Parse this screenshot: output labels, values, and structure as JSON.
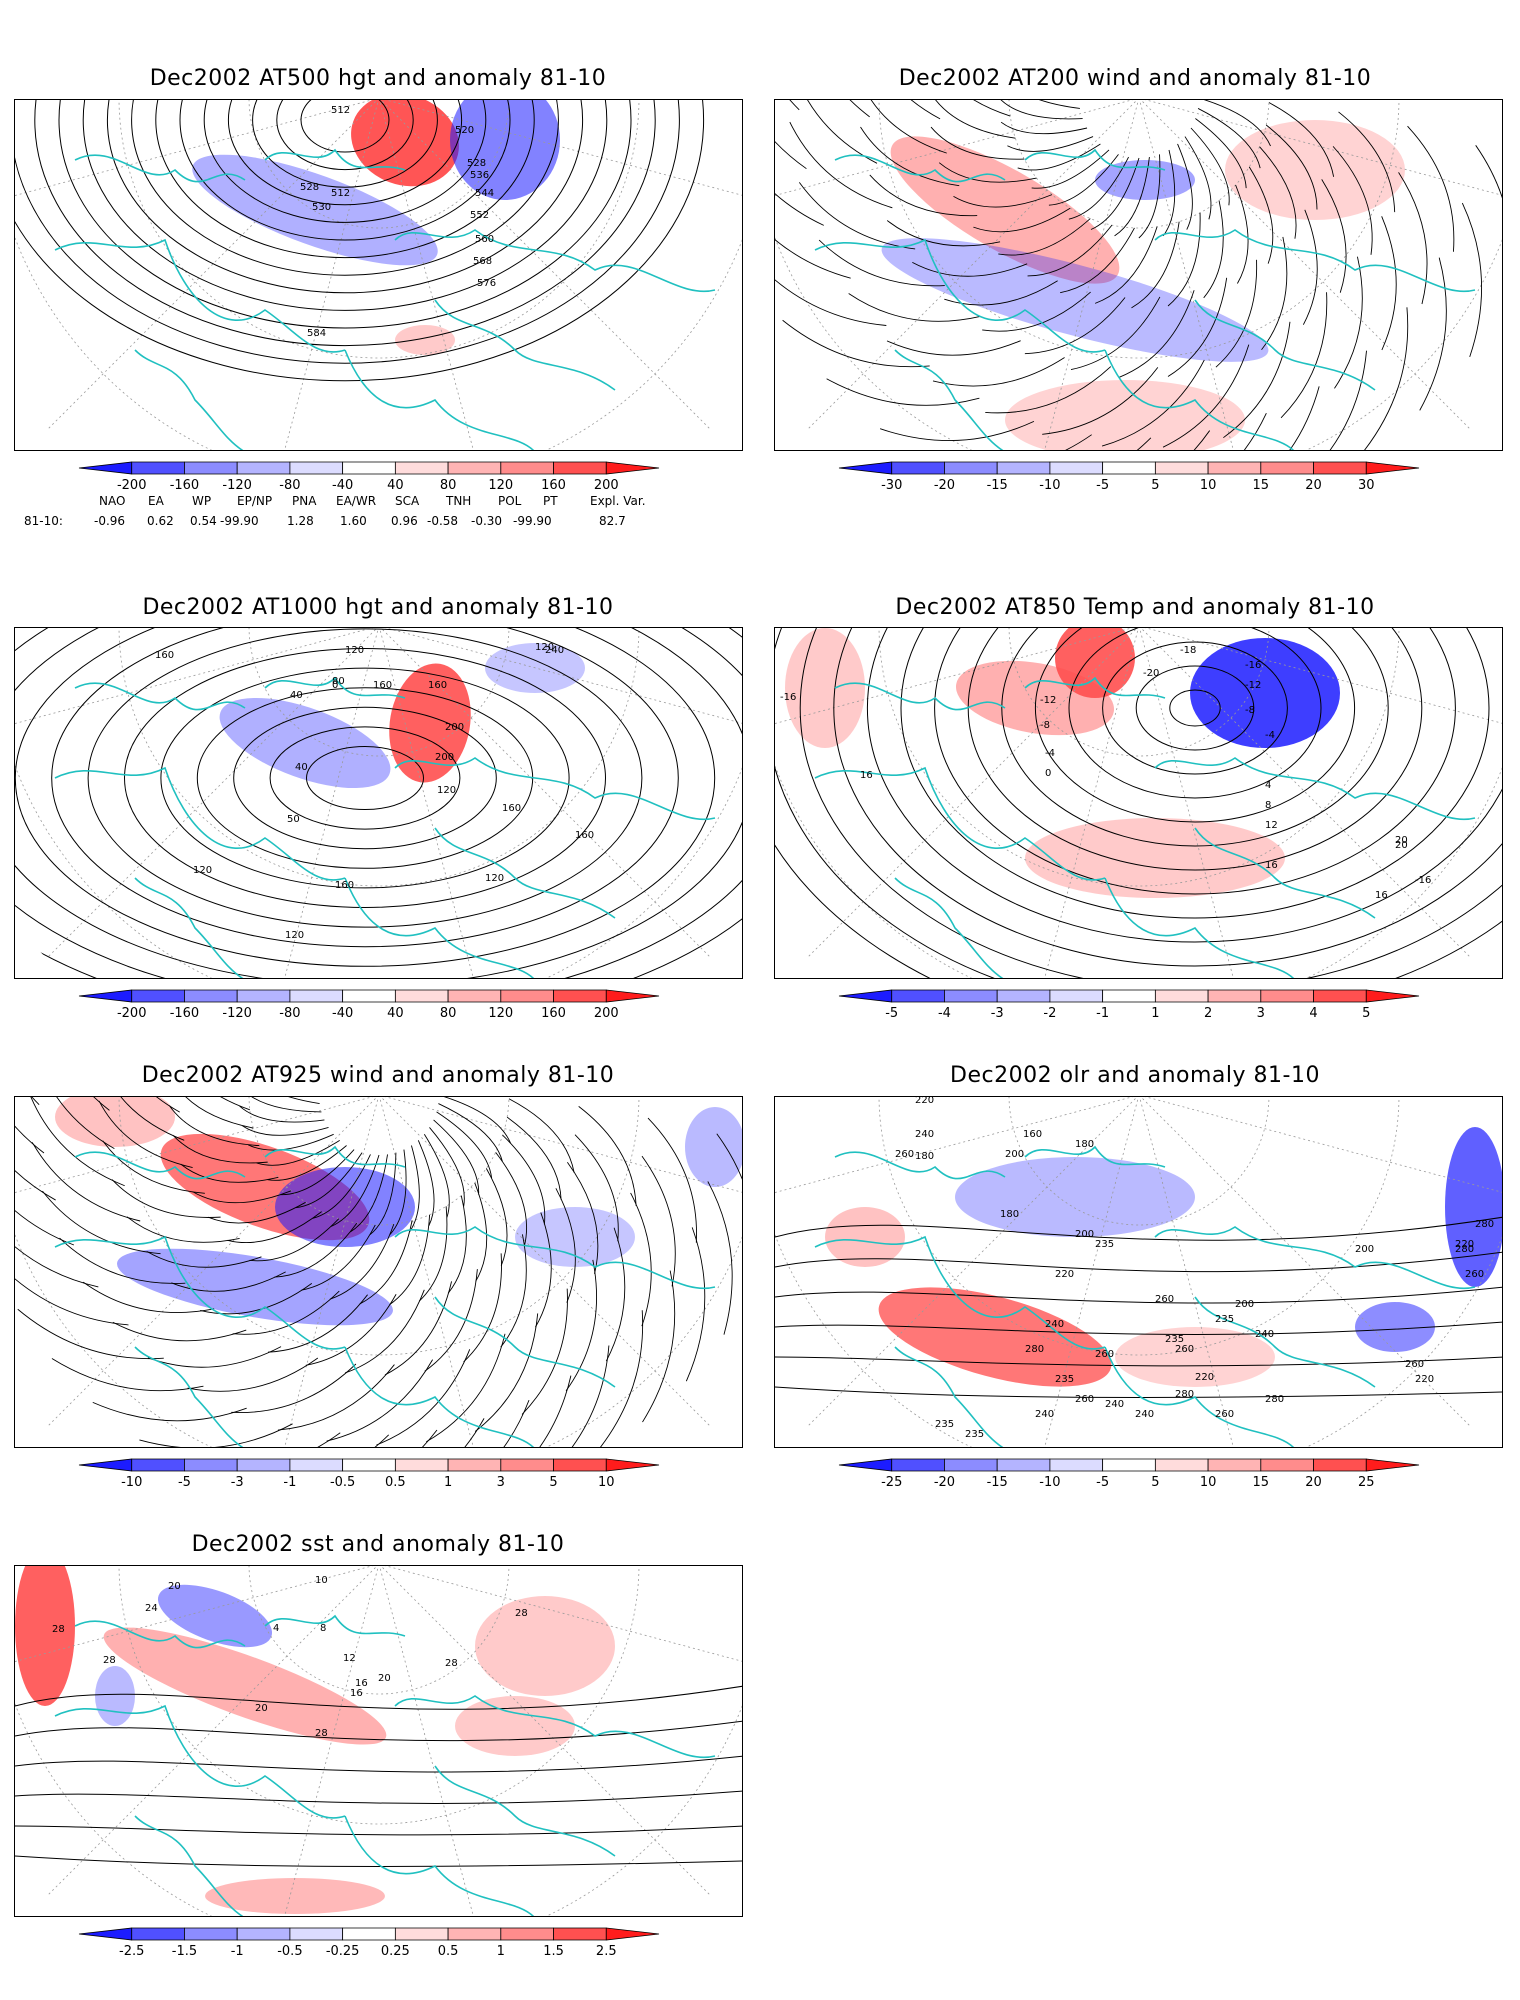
{
  "panels": [
    {
      "id": "p500",
      "title": "Dec2002 AT500 hgt and anomaly 81-10",
      "colorbar": {
        "labels": [
          "-200",
          "-160",
          "-120",
          "-80",
          "-40",
          "40",
          "80",
          "120",
          "160",
          "200"
        ]
      },
      "contour_labels": [
        "512",
        "512",
        "520",
        "528",
        "528",
        "536",
        "530",
        "544",
        "552",
        "560",
        "568",
        "576",
        "584"
      ]
    },
    {
      "id": "p200",
      "title": "Dec2002 AT200 wind and anomaly 81-10",
      "colorbar": {
        "labels": [
          "-30",
          "-20",
          "-15",
          "-10",
          "-5",
          "5",
          "10",
          "15",
          "20",
          "30"
        ]
      },
      "contour_labels": []
    },
    {
      "id": "p1000",
      "title": "Dec2002 AT1000 hgt and anomaly 81-10",
      "colorbar": {
        "labels": [
          "-200",
          "-160",
          "-120",
          "-80",
          "-40",
          "40",
          "80",
          "120",
          "160",
          "200"
        ]
      },
      "contour_labels": [
        "160",
        "40",
        "0",
        "120",
        "120",
        "160",
        "80",
        "240",
        "160",
        "200",
        "200",
        "40",
        "120",
        "120",
        "160",
        "160",
        "120",
        "160",
        "120",
        "50"
      ]
    },
    {
      "id": "p850",
      "title": "Dec2002 AT850 Temp and anomaly 81-10",
      "colorbar": {
        "labels": [
          "-5",
          "-4",
          "-3",
          "-2",
          "-1",
          "1",
          "2",
          "3",
          "4",
          "5"
        ]
      },
      "contour_labels": [
        "-16",
        "-18",
        "-20",
        "-12",
        "-8",
        "-16",
        "-12",
        "-8",
        "-4",
        "-4",
        "0",
        "4",
        "8",
        "12",
        "16",
        "16",
        "20",
        "20",
        "-16",
        "16"
      ]
    },
    {
      "id": "p925",
      "title": "Dec2002 AT925 wind and anomaly 81-10",
      "colorbar": {
        "labels": [
          "-10",
          "-5",
          "-3",
          "-1",
          "-0.5",
          "0.5",
          "1",
          "3",
          "5",
          "10"
        ]
      },
      "contour_labels": []
    },
    {
      "id": "polr",
      "title": "Dec2002 olr and anomaly 81-10",
      "colorbar": {
        "labels": [
          "-25",
          "-20",
          "-15",
          "-10",
          "-5",
          "5",
          "10",
          "15",
          "20",
          "25"
        ]
      },
      "contour_labels": [
        "220",
        "240",
        "180",
        "160",
        "260",
        "200",
        "180",
        "180",
        "200",
        "235",
        "220",
        "235",
        "240",
        "260",
        "280",
        "220",
        "260",
        "280",
        "200",
        "200",
        "240",
        "235",
        "280",
        "260",
        "240",
        "260",
        "240",
        "220",
        "235",
        "260",
        "280",
        "240",
        "260",
        "280",
        "260",
        "220",
        "235",
        "235"
      ]
    },
    {
      "id": "psst",
      "title": "Dec2002 sst and anomaly 81-10",
      "colorbar": {
        "labels": [
          "-2.5",
          "-1.5",
          "-1",
          "-0.5",
          "-0.25",
          "0.25",
          "0.5",
          "1",
          "1.5",
          "2.5"
        ]
      },
      "contour_labels": [
        "28",
        "24",
        "28",
        "20",
        "10",
        "4",
        "8",
        "12",
        "16",
        "16",
        "20",
        "20",
        "28",
        "28",
        "28"
      ]
    }
  ],
  "indices": {
    "headers": [
      "NAO",
      "EA",
      "WP",
      "EP/NP",
      "PNA",
      "EA/WR",
      "SCA",
      "TNH",
      "POL",
      "PT",
      "Expl. Var."
    ],
    "row_label": "81-10:",
    "values": [
      "-0.96",
      "0.62",
      "0.54",
      "-99.90",
      "1.28",
      "1.60",
      "0.96",
      "-0.58",
      "-0.30",
      "-99.90",
      "82.7"
    ]
  },
  "colors": {
    "coast": "#20c0c0",
    "contour": "#000000",
    "neg_strong": "#1c1cff",
    "pos_strong": "#ff1c1c",
    "grid": "#9a9a9a"
  }
}
